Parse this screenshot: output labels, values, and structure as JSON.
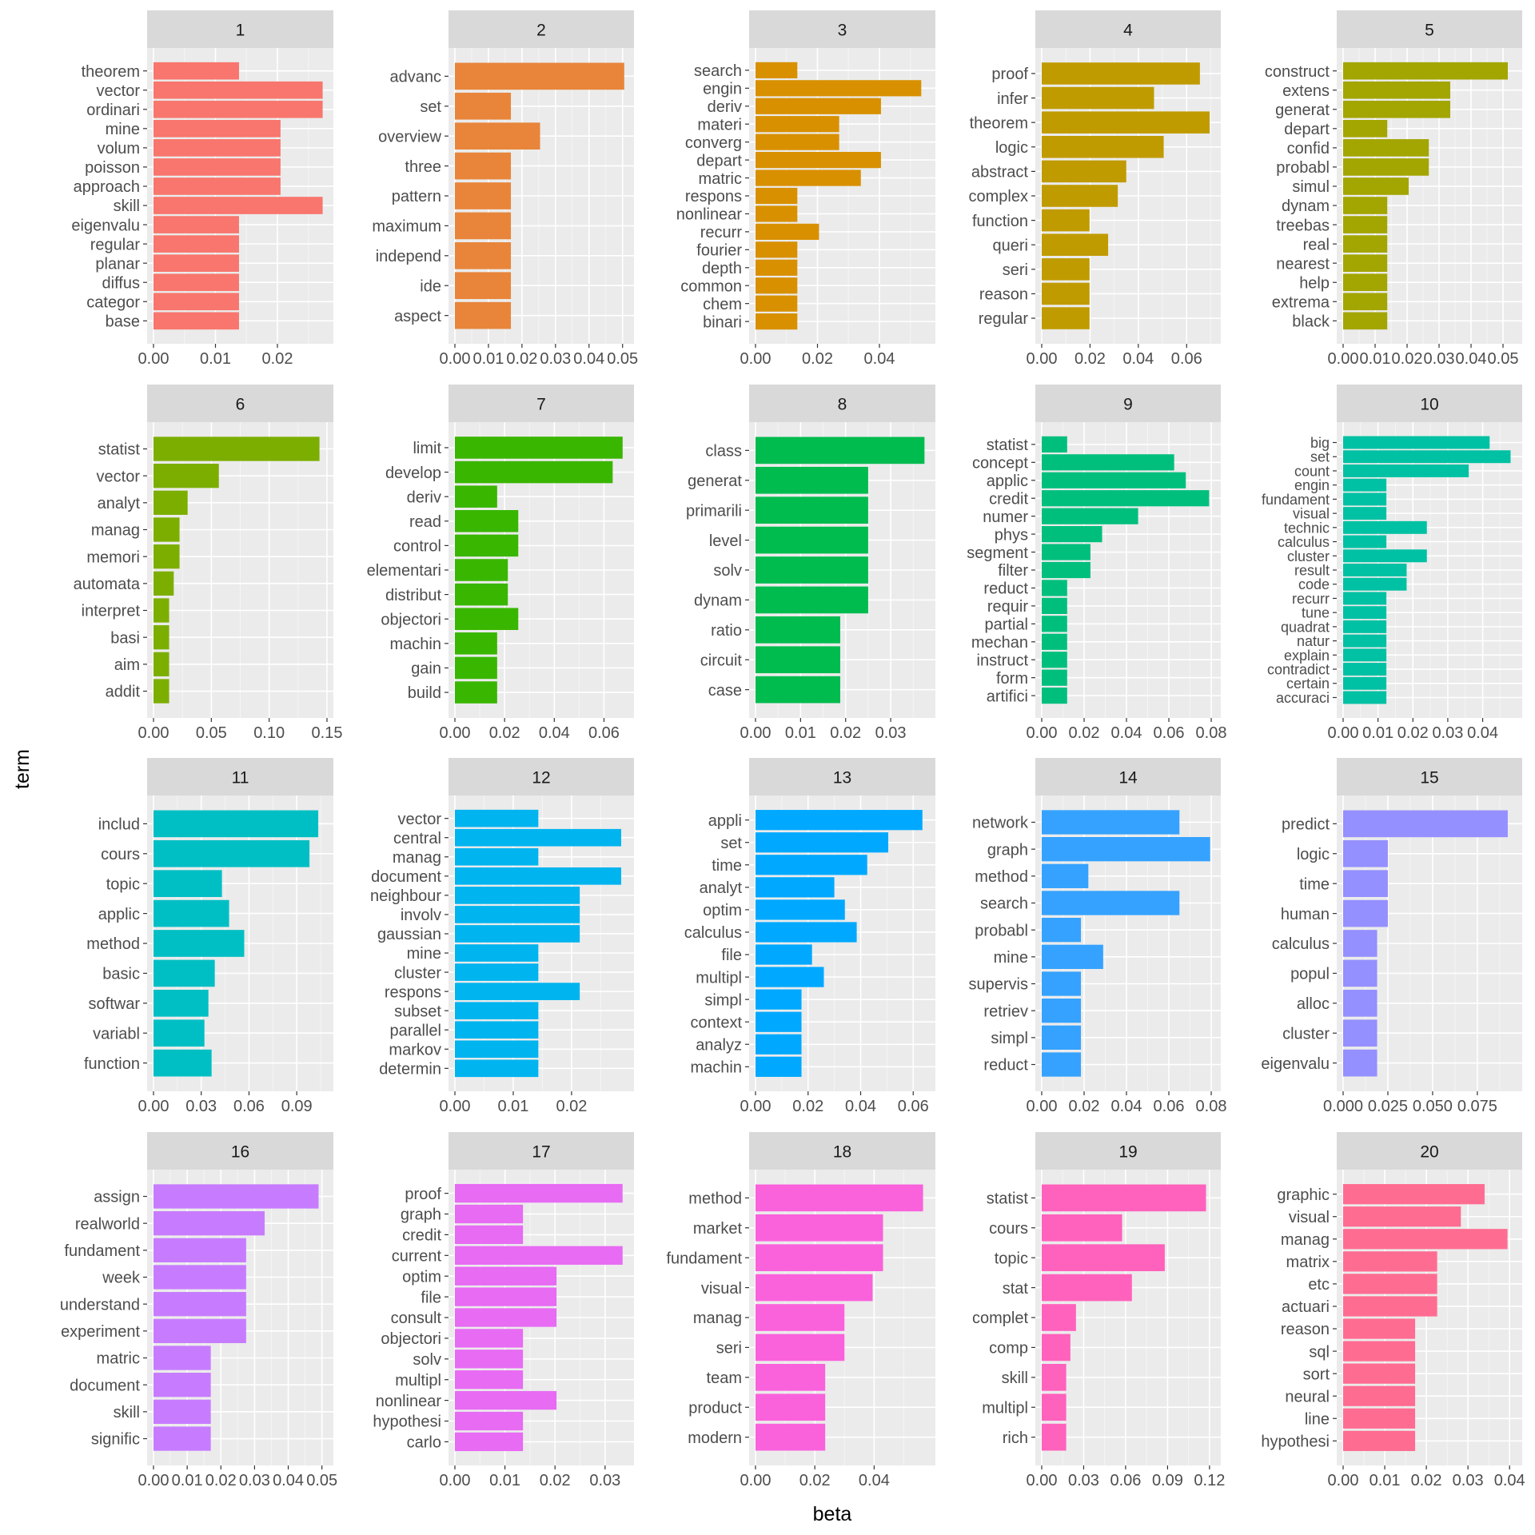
{
  "chart_data": {
    "type": "bar",
    "orientation": "horizontal",
    "facet_layout": "5 columns x 4 rows",
    "xlabel": "beta",
    "ylabel": "term",
    "grid": true,
    "panels": [
      {
        "title": "1",
        "color": "#F8766D",
        "xlim": [
          0,
          0.028
        ],
        "ticks": [
          "0.00",
          "0.01",
          "0.02"
        ],
        "tick_values": [
          0,
          0.01,
          0.02
        ],
        "terms": [
          "theorem",
          "vector",
          "ordinari",
          "mine",
          "volum",
          "poisson",
          "approach",
          "skill",
          "eigenvalu",
          "regular",
          "planar",
          "diffus",
          "categor",
          "base"
        ],
        "values": [
          0.0138,
          0.0273,
          0.0273,
          0.0205,
          0.0205,
          0.0205,
          0.0205,
          0.0273,
          0.0138,
          0.0138,
          0.0138,
          0.0138,
          0.0138,
          0.0138
        ]
      },
      {
        "title": "2",
        "color": "#E8853A",
        "xlim": [
          0,
          0.0515
        ],
        "ticks": [
          "0.00",
          "0.01",
          "0.02",
          "0.03",
          "0.04",
          "0.05"
        ],
        "tick_values": [
          0,
          0.01,
          0.02,
          0.03,
          0.04,
          0.05
        ],
        "terms": [
          "advanc",
          "set",
          "overview",
          "three",
          "pattern",
          "maximum",
          "independ",
          "ide",
          "aspect"
        ],
        "values": [
          0.0505,
          0.0167,
          0.0254,
          0.0167,
          0.0167,
          0.0167,
          0.0167,
          0.0167,
          0.0167
        ]
      },
      {
        "title": "3",
        "color": "#D89000",
        "xlim": [
          0,
          0.056
        ],
        "ticks": [
          "0.00",
          "0.02",
          "0.04"
        ],
        "tick_values": [
          0,
          0.02,
          0.04
        ],
        "terms": [
          "search",
          "engin",
          "deriv",
          "materi",
          "converg",
          "depart",
          "matric",
          "respons",
          "nonlinear",
          "recurr",
          "fourier",
          "depth",
          "common",
          "chem",
          "binari"
        ],
        "values": [
          0.0135,
          0.0535,
          0.0405,
          0.027,
          0.027,
          0.0405,
          0.034,
          0.0135,
          0.0135,
          0.0205,
          0.0135,
          0.0135,
          0.0135,
          0.0135,
          0.0135
        ]
      },
      {
        "title": "4",
        "color": "#C09B00",
        "xlim": [
          0,
          0.0715
        ],
        "ticks": [
          "0.00",
          "0.02",
          "0.04",
          "0.06"
        ],
        "tick_values": [
          0,
          0.02,
          0.04,
          0.06
        ],
        "terms": [
          "proof",
          "infer",
          "theorem",
          "logic",
          "abstract",
          "complex",
          "function",
          "queri",
          "seri",
          "reason",
          "regular"
        ],
        "values": [
          0.0655,
          0.0465,
          0.0695,
          0.0505,
          0.035,
          0.0315,
          0.0198,
          0.0275,
          0.0198,
          0.0198,
          0.0198
        ]
      },
      {
        "title": "5",
        "color": "#A3A500",
        "xlim": [
          0,
          0.054
        ],
        "ticks": [
          "0.00",
          "0.01",
          "0.02",
          "0.03",
          "0.04",
          "0.05"
        ],
        "tick_values": [
          0,
          0.01,
          0.02,
          0.03,
          0.04,
          0.05
        ],
        "terms": [
          "construct",
          "extens",
          "generat",
          "depart",
          "confid",
          "probabl",
          "simul",
          "dynam",
          "treebas",
          "real",
          "nearest",
          "help",
          "extrema",
          "black"
        ],
        "values": [
          0.0515,
          0.0335,
          0.0335,
          0.0138,
          0.0268,
          0.0268,
          0.0205,
          0.0138,
          0.0138,
          0.0138,
          0.0138,
          0.0138,
          0.0138,
          0.0138
        ]
      },
      {
        "title": "6",
        "color": "#7CAE00",
        "xlim": [
          0,
          0.15
        ],
        "ticks": [
          "0.00",
          "0.05",
          "0.10",
          "0.15"
        ],
        "tick_values": [
          0,
          0.05,
          0.1,
          0.15
        ],
        "terms": [
          "statist",
          "vector",
          "analyt",
          "manag",
          "memori",
          "automata",
          "interpret",
          "basi",
          "aim",
          "addit"
        ],
        "values": [
          0.1435,
          0.0565,
          0.0295,
          0.0225,
          0.0225,
          0.0175,
          0.0135,
          0.0135,
          0.0135,
          0.0135
        ]
      },
      {
        "title": "7",
        "color": "#39B600",
        "xlim": [
          0,
          0.0695
        ],
        "ticks": [
          "0.00",
          "0.02",
          "0.04",
          "0.06"
        ],
        "tick_values": [
          0,
          0.02,
          0.04,
          0.06
        ],
        "terms": [
          "limit",
          "develop",
          "deriv",
          "read",
          "control",
          "elementari",
          "distribut",
          "objectori",
          "machin",
          "gain",
          "build"
        ],
        "values": [
          0.0675,
          0.0635,
          0.017,
          0.0255,
          0.0255,
          0.0213,
          0.0213,
          0.0255,
          0.017,
          0.017,
          0.017
        ]
      },
      {
        "title": "8",
        "color": "#00BB4E",
        "xlim": [
          0,
          0.0385
        ],
        "ticks": [
          "0.00",
          "0.01",
          "0.02",
          "0.03"
        ],
        "tick_values": [
          0,
          0.01,
          0.02,
          0.03
        ],
        "terms": [
          "class",
          "generat",
          "primarili",
          "level",
          "solv",
          "dynam",
          "ratio",
          "circuit",
          "case"
        ],
        "values": [
          0.0375,
          0.025,
          0.025,
          0.025,
          0.025,
          0.025,
          0.0188,
          0.0188,
          0.0188
        ]
      },
      {
        "title": "9",
        "color": "#00BF7D",
        "xlim": [
          0,
          0.0815
        ],
        "ticks": [
          "0.00",
          "0.02",
          "0.04",
          "0.06",
          "0.08"
        ],
        "tick_values": [
          0,
          0.02,
          0.04,
          0.06,
          0.08
        ],
        "terms": [
          "statist",
          "concept",
          "applic",
          "credit",
          "numer",
          "phys",
          "segment",
          "filter",
          "reduct",
          "requir",
          "partial",
          "mechan",
          "instruct",
          "form",
          "artifici"
        ],
        "values": [
          0.012,
          0.0625,
          0.068,
          0.079,
          0.0455,
          0.0285,
          0.023,
          0.023,
          0.012,
          0.012,
          0.012,
          0.012,
          0.012,
          0.012,
          0.012
        ]
      },
      {
        "title": "10",
        "color": "#00C1A3",
        "xlim": [
          0,
          0.0495
        ],
        "ticks": [
          "0.00",
          "0.01",
          "0.02",
          "0.03",
          "0.04"
        ],
        "tick_values": [
          0,
          0.01,
          0.02,
          0.03,
          0.04
        ],
        "terms": [
          "big",
          "set",
          "count",
          "engin",
          "fundament",
          "visual",
          "technic",
          "calculus",
          "cluster",
          "result",
          "code",
          "recurr",
          "tune",
          "quadrat",
          "natur",
          "explain",
          "contradict",
          "certain",
          "accuraci"
        ],
        "values": [
          0.042,
          0.048,
          0.036,
          0.0124,
          0.0124,
          0.0124,
          0.024,
          0.0124,
          0.024,
          0.0182,
          0.0182,
          0.0124,
          0.0124,
          0.0124,
          0.0124,
          0.0124,
          0.0124,
          0.0124,
          0.0124
        ]
      },
      {
        "title": "11",
        "color": "#00BFC4",
        "xlim": [
          0,
          0.109
        ],
        "ticks": [
          "0.00",
          "0.03",
          "0.06",
          "0.09"
        ],
        "tick_values": [
          0,
          0.03,
          0.06,
          0.09
        ],
        "terms": [
          "includ",
          "cours",
          "topic",
          "applic",
          "method",
          "basic",
          "softwar",
          "variabl",
          "function"
        ],
        "values": [
          0.1035,
          0.098,
          0.043,
          0.0475,
          0.057,
          0.0385,
          0.0345,
          0.032,
          0.0365
        ]
      },
      {
        "title": "12",
        "color": "#00B4EF",
        "xlim": [
          0,
          0.0296
        ],
        "ticks": [
          "0.00",
          "0.01",
          "0.02"
        ],
        "tick_values": [
          0,
          0.01,
          0.02
        ],
        "terms": [
          "vector",
          "central",
          "manag",
          "document",
          "neighbour",
          "involv",
          "gaussian",
          "mine",
          "cluster",
          "respons",
          "subset",
          "parallel",
          "markov",
          "determin"
        ],
        "values": [
          0.0143,
          0.0285,
          0.0143,
          0.0285,
          0.0214,
          0.0214,
          0.0214,
          0.0143,
          0.0143,
          0.0214,
          0.0143,
          0.0143,
          0.0143,
          0.0143
        ]
      },
      {
        "title": "13",
        "color": "#00A9FF",
        "xlim": [
          0,
          0.066
        ],
        "ticks": [
          "0.00",
          "0.02",
          "0.04",
          "0.06"
        ],
        "tick_values": [
          0,
          0.02,
          0.04,
          0.06
        ],
        "terms": [
          "appli",
          "set",
          "time",
          "analyt",
          "optim",
          "calculus",
          "file",
          "multipl",
          "simpl",
          "context",
          "analyz",
          "machin"
        ],
        "values": [
          0.0635,
          0.0505,
          0.0425,
          0.03,
          0.034,
          0.0385,
          0.0215,
          0.026,
          0.0175,
          0.0175,
          0.0175,
          0.0175
        ]
      },
      {
        "title": "14",
        "color": "#35A2FF",
        "xlim": [
          0,
          0.0815
        ],
        "ticks": [
          "0.00",
          "0.02",
          "0.04",
          "0.06",
          "0.08"
        ],
        "tick_values": [
          0,
          0.02,
          0.04,
          0.06,
          0.08
        ],
        "terms": [
          "network",
          "graph",
          "method",
          "search",
          "probabl",
          "mine",
          "supervis",
          "retriev",
          "simpl",
          "reduct"
        ],
        "values": [
          0.065,
          0.0795,
          0.022,
          0.065,
          0.0185,
          0.029,
          0.0185,
          0.0185,
          0.0185,
          0.0185
        ]
      },
      {
        "title": "15",
        "color": "#9590FF",
        "xlim": [
          0,
          0.0965
        ],
        "ticks": [
          "0.000",
          "0.025",
          "0.050",
          "0.075"
        ],
        "tick_values": [
          0,
          0.025,
          0.05,
          0.075
        ],
        "terms": [
          "predict",
          "logic",
          "time",
          "human",
          "calculus",
          "popul",
          "alloc",
          "cluster",
          "eigenvalu"
        ],
        "values": [
          0.092,
          0.025,
          0.025,
          0.025,
          0.019,
          0.019,
          0.019,
          0.019,
          0.019
        ]
      },
      {
        "title": "16",
        "color": "#C77CFF",
        "xlim": [
          0,
          0.0515
        ],
        "ticks": [
          "0.00",
          "0.01",
          "0.02",
          "0.03",
          "0.04",
          "0.05"
        ],
        "tick_values": [
          0,
          0.01,
          0.02,
          0.03,
          0.04,
          0.05
        ],
        "terms": [
          "assign",
          "realworld",
          "fundament",
          "week",
          "understand",
          "experiment",
          "matric",
          "document",
          "skill",
          "signific"
        ],
        "values": [
          0.049,
          0.033,
          0.0275,
          0.0275,
          0.0275,
          0.0275,
          0.017,
          0.017,
          0.017,
          0.017
        ]
      },
      {
        "title": "17",
        "color": "#E76BF3",
        "xlim": [
          0,
          0.0345
        ],
        "ticks": [
          "0.00",
          "0.01",
          "0.02",
          "0.03"
        ],
        "tick_values": [
          0,
          0.01,
          0.02,
          0.03
        ],
        "terms": [
          "proof",
          "graph",
          "credit",
          "current",
          "optim",
          "file",
          "consult",
          "objectori",
          "solv",
          "multipl",
          "nonlinear",
          "hypothesi",
          "carlo"
        ],
        "values": [
          0.0335,
          0.0136,
          0.0136,
          0.0335,
          0.0203,
          0.0203,
          0.0203,
          0.0136,
          0.0136,
          0.0136,
          0.0203,
          0.0136,
          0.0136
        ]
      },
      {
        "title": "18",
        "color": "#FA62DB",
        "xlim": [
          0,
          0.0585
        ],
        "ticks": [
          "0.00",
          "0.02",
          "0.04"
        ],
        "tick_values": [
          0,
          0.02,
          0.04
        ],
        "terms": [
          "method",
          "market",
          "fundament",
          "visual",
          "manag",
          "seri",
          "team",
          "product",
          "modern"
        ],
        "values": [
          0.0565,
          0.043,
          0.043,
          0.0395,
          0.03,
          0.03,
          0.0235,
          0.0235,
          0.0235
        ]
      },
      {
        "title": "19",
        "color": "#FF62BC",
        "xlim": [
          0,
          0.1235
        ],
        "ticks": [
          "0.00",
          "0.03",
          "0.06",
          "0.09",
          "0.12"
        ],
        "tick_values": [
          0,
          0.03,
          0.06,
          0.09,
          0.12
        ],
        "terms": [
          "statist",
          "cours",
          "topic",
          "stat",
          "complet",
          "comp",
          "skill",
          "multipl",
          "rich"
        ],
        "values": [
          0.1175,
          0.0575,
          0.088,
          0.0645,
          0.0245,
          0.0205,
          0.0175,
          0.0175,
          0.0175
        ]
      },
      {
        "title": "20",
        "color": "#FF6C91",
        "xlim": [
          0,
          0.0415
        ],
        "ticks": [
          "0.00",
          "0.01",
          "0.02",
          "0.03",
          "0.04"
        ],
        "tick_values": [
          0,
          0.01,
          0.02,
          0.03,
          0.04
        ],
        "terms": [
          "graphic",
          "visual",
          "manag",
          "matrix",
          "etc",
          "actuari",
          "reason",
          "sql",
          "sort",
          "neural",
          "line",
          "hypothesi"
        ],
        "values": [
          0.034,
          0.0283,
          0.0395,
          0.0226,
          0.0226,
          0.0226,
          0.0173,
          0.0173,
          0.0173,
          0.0173,
          0.0173,
          0.0173
        ]
      }
    ]
  }
}
